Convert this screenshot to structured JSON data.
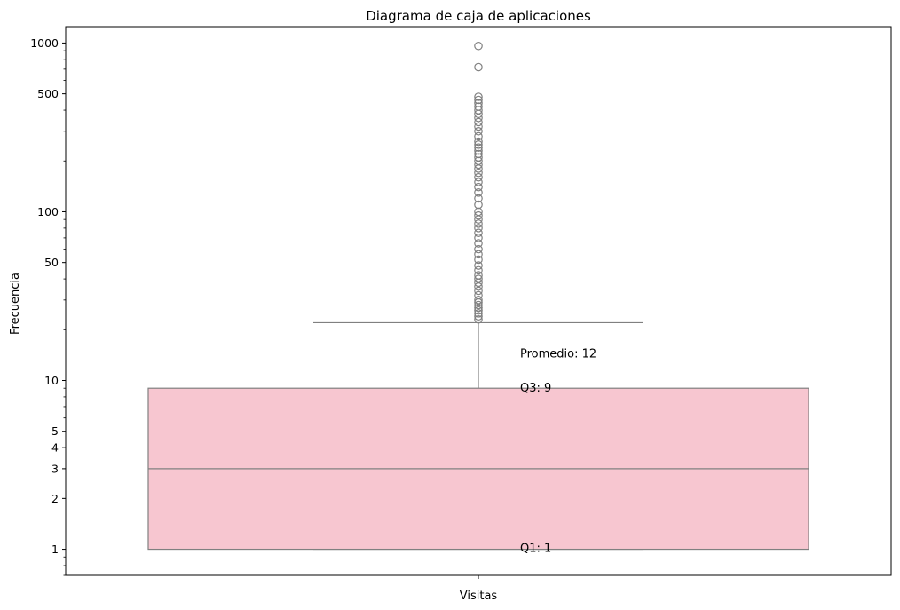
{
  "chart_data": {
    "type": "box",
    "title": "Diagrama de caja de aplicaciones",
    "xlabel": "",
    "ylabel": "Frecuencia",
    "categories": [
      "Visitas"
    ],
    "yscale": "log",
    "ylim": [
      0.7,
      1250
    ],
    "yticks": [
      1,
      2,
      3,
      4,
      5,
      10,
      50,
      100,
      500,
      1000
    ],
    "ytick_labels": [
      "1",
      "2",
      "3",
      "4",
      "5",
      "10",
      "50",
      "100",
      "500",
      "1000"
    ],
    "box": {
      "whisker_low": 1,
      "q1": 1,
      "median": 3,
      "q3": 9,
      "whisker_high": 22,
      "fill_color": "#f7c6d0",
      "line_color": "#808080"
    },
    "outliers": [
      960,
      720,
      480,
      460,
      440,
      420,
      400,
      380,
      360,
      340,
      320,
      300,
      280,
      260,
      250,
      240,
      230,
      220,
      210,
      200,
      190,
      180,
      170,
      160,
      150,
      140,
      130,
      120,
      110,
      100,
      95,
      90,
      85,
      80,
      75,
      70,
      65,
      60,
      56,
      52,
      48,
      45,
      42,
      40,
      38,
      36,
      34,
      32,
      30,
      29,
      28,
      27,
      26,
      25,
      24,
      23
    ],
    "annotations": [
      {
        "text": "Promedio: 12",
        "y": 12
      },
      {
        "text": "Q3: 9",
        "y": 9
      },
      {
        "text": "Q1: 1",
        "y": 1
      }
    ],
    "grid": false,
    "legend": "none"
  }
}
